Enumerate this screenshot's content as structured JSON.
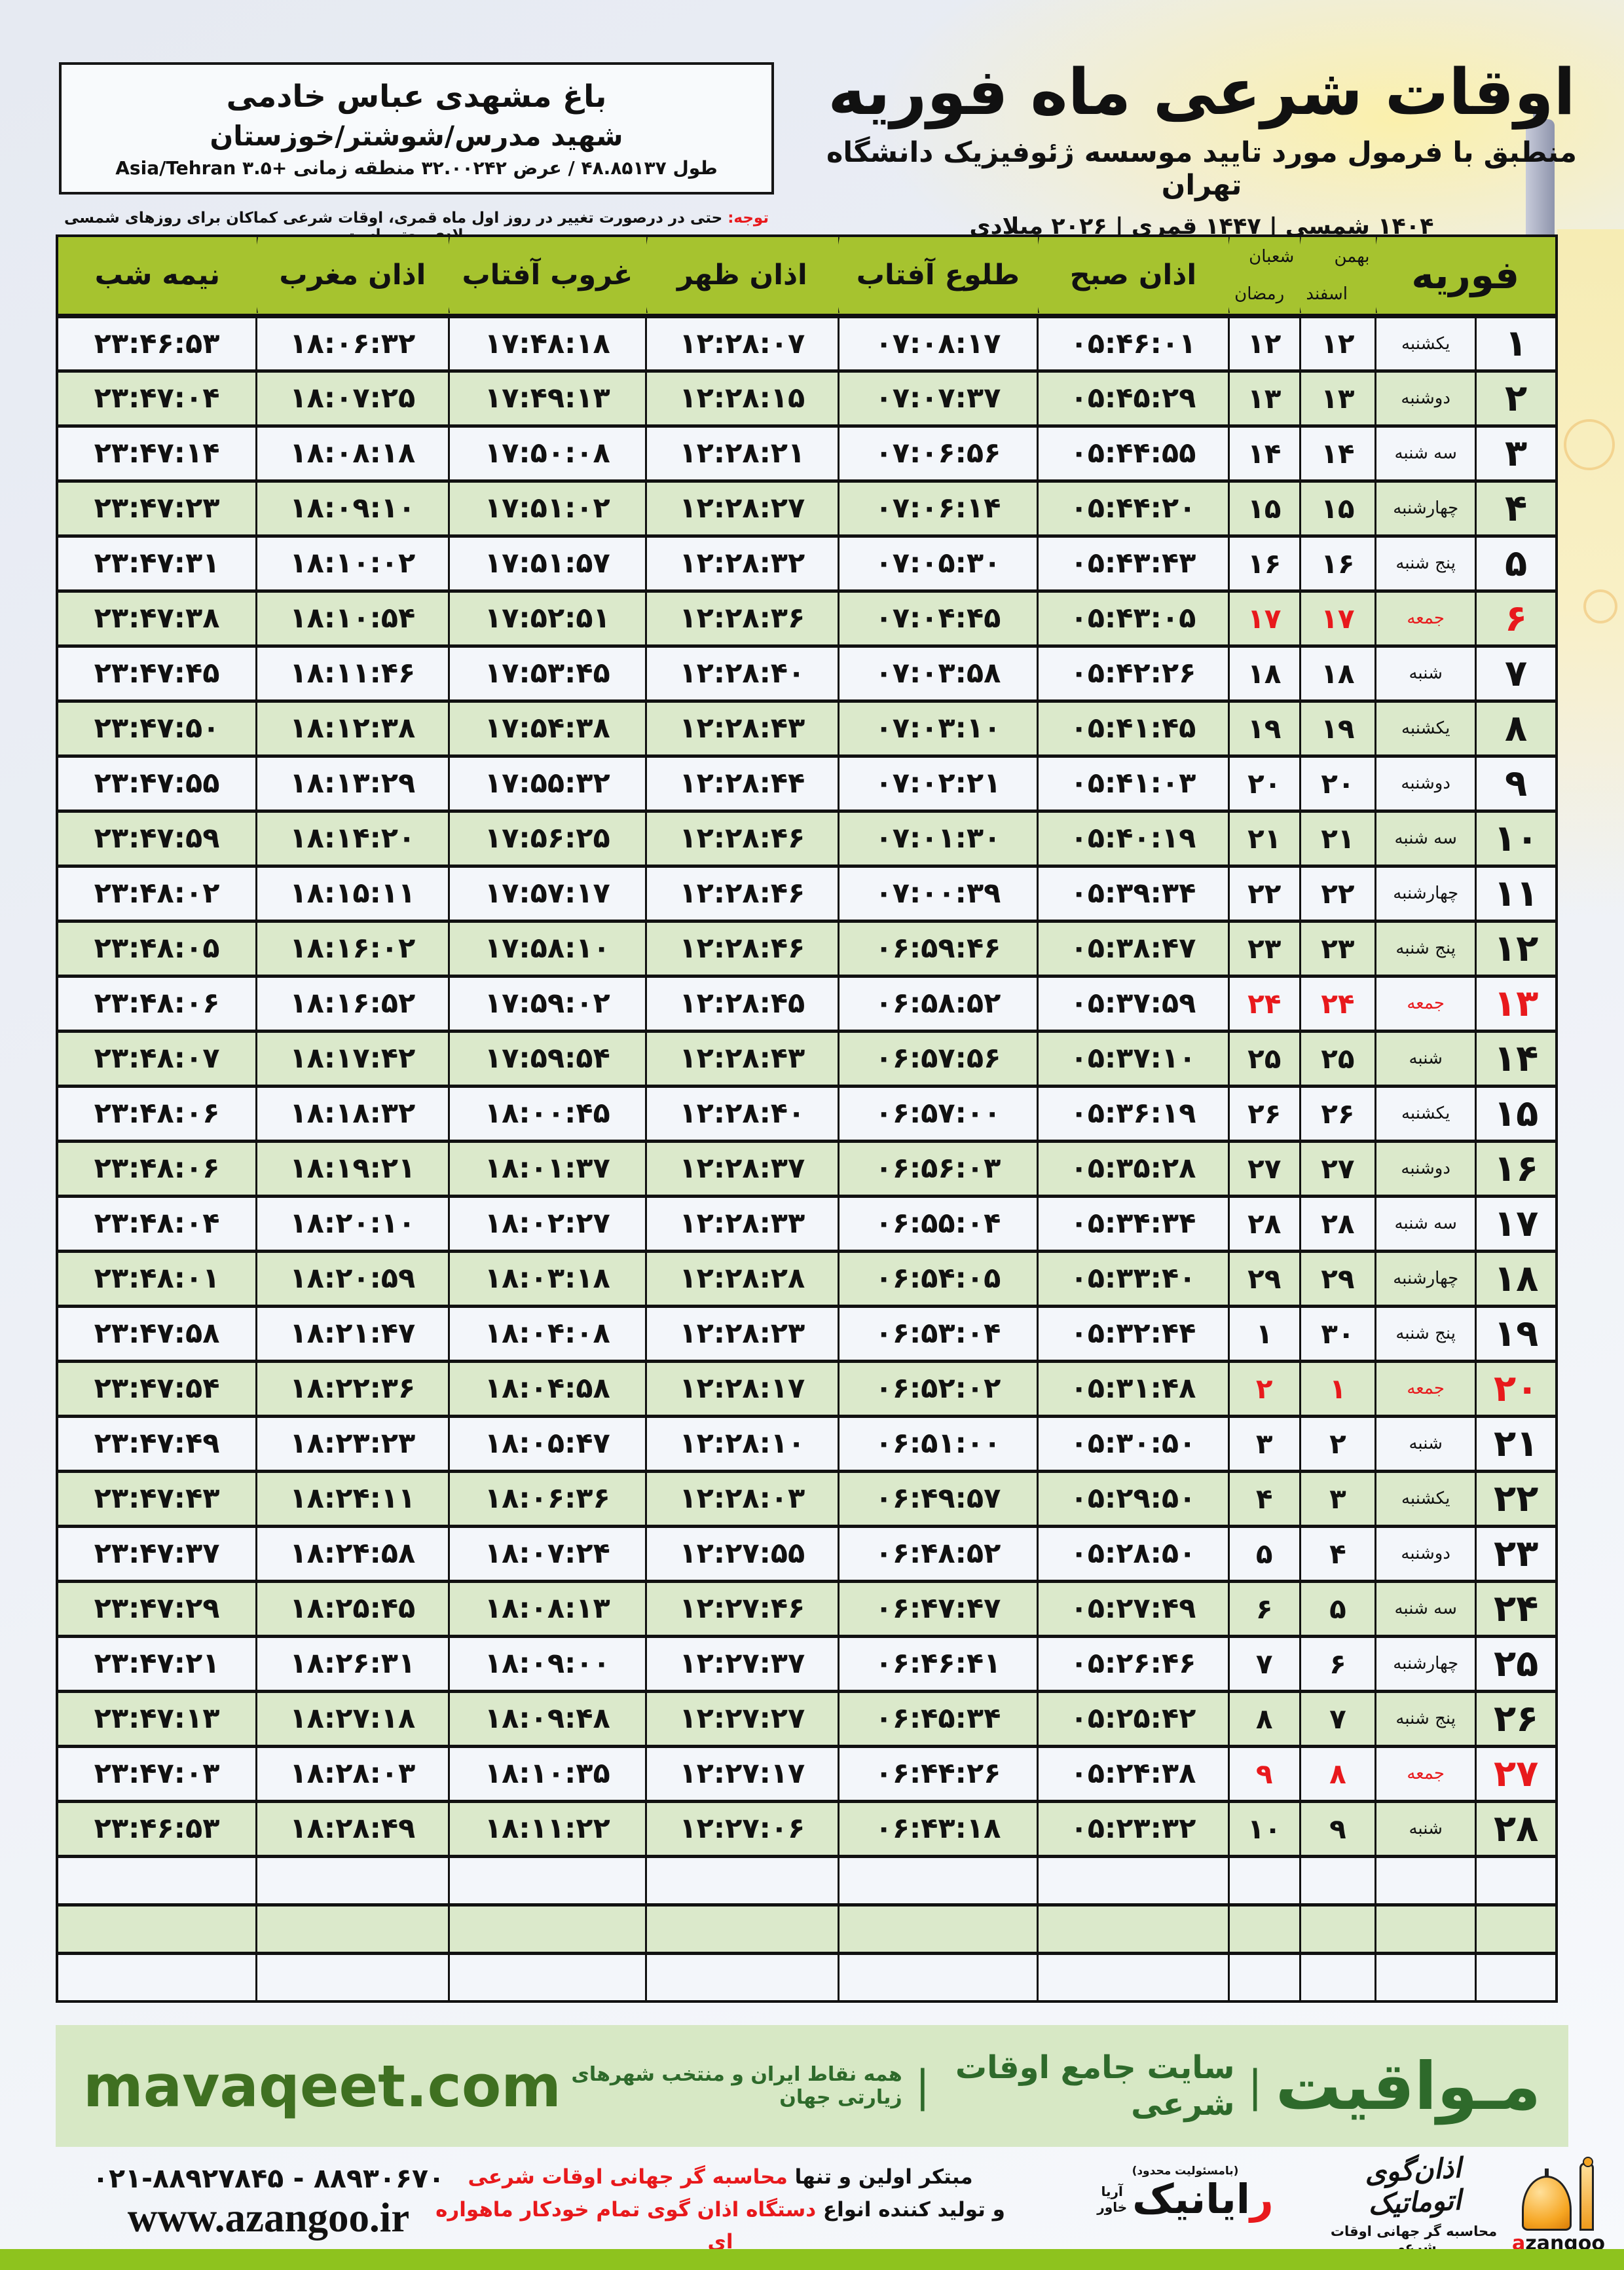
{
  "colors": {
    "header_green": "#a6c32f",
    "row_green": "#dbe9cb",
    "row_white": "#f3f6fa",
    "friday_red": "#e8191c",
    "band_green": "#d7e8c5",
    "brand_green": "#2e6a2b",
    "domain_green": "#3f7021",
    "bottom_strip_green": "#8ec31e"
  },
  "location_box": {
    "name": "باغ مشهدی عباس خادمی",
    "address": "شهید مدرس/شوشتر/خوزستان",
    "coords": "طول ۴۸.۸۵۱۳۷ / عرض ۳۲.۰۰۲۴۲ منطقه زمانی +۳.۵ Asia/Tehran"
  },
  "note": {
    "label": "توجه:",
    "text": " حتی در درصورت تغییر در روز اول ماه قمری، اوقات شرعی کماکان برای روزهای شمسی و میلادی معتبر است."
  },
  "title_block": {
    "title": "اوقات شرعی ماه فوریه",
    "subtitle": "منطبق با فرمول مورد تایید موسسه ژئوفیزیک دانشگاه تهران",
    "era_line": "۱۴۰۴ شمسی | ۱۴۴۷ قمری | ۲۰۲۶ میلادی"
  },
  "table": {
    "cols": {
      "month": "فوریه",
      "jalali_top": "بهمن",
      "jalali_bottom": "اسفند",
      "hijri_top": "شعبان",
      "hijri_bottom": "رمضان",
      "fajr": "اذان صبح",
      "sunrise": "طلوع آفتاب",
      "dhuhr": "اذان ظهر",
      "sunset": "غروب آفتاب",
      "maghrib": "اذان مغرب",
      "midnight": "نیمه شب"
    },
    "empty_rows": 3,
    "rows": [
      {
        "day": "۱",
        "weekday": "یکشنبه",
        "jalali": "۱۲",
        "hijri": "۱۲",
        "fajr": "۰۵:۴۶:۰۱",
        "sunrise": "۰۷:۰۸:۱۷",
        "dhuhr": "۱۲:۲۸:۰۷",
        "sunset": "۱۷:۴۸:۱۸",
        "maghrib": "۱۸:۰۶:۳۲",
        "midnight": "۲۳:۴۶:۵۳",
        "friday": false
      },
      {
        "day": "۲",
        "weekday": "دوشنبه",
        "jalali": "۱۳",
        "hijri": "۱۳",
        "fajr": "۰۵:۴۵:۲۹",
        "sunrise": "۰۷:۰۷:۳۷",
        "dhuhr": "۱۲:۲۸:۱۵",
        "sunset": "۱۷:۴۹:۱۳",
        "maghrib": "۱۸:۰۷:۲۵",
        "midnight": "۲۳:۴۷:۰۴",
        "friday": false
      },
      {
        "day": "۳",
        "weekday": "سه شنبه",
        "jalali": "۱۴",
        "hijri": "۱۴",
        "fajr": "۰۵:۴۴:۵۵",
        "sunrise": "۰۷:۰۶:۵۶",
        "dhuhr": "۱۲:۲۸:۲۱",
        "sunset": "۱۷:۵۰:۰۸",
        "maghrib": "۱۸:۰۸:۱۸",
        "midnight": "۲۳:۴۷:۱۴",
        "friday": false
      },
      {
        "day": "۴",
        "weekday": "چهارشنبه",
        "jalali": "۱۵",
        "hijri": "۱۵",
        "fajr": "۰۵:۴۴:۲۰",
        "sunrise": "۰۷:۰۶:۱۴",
        "dhuhr": "۱۲:۲۸:۲۷",
        "sunset": "۱۷:۵۱:۰۲",
        "maghrib": "۱۸:۰۹:۱۰",
        "midnight": "۲۳:۴۷:۲۳",
        "friday": false
      },
      {
        "day": "۵",
        "weekday": "پنج شنبه",
        "jalali": "۱۶",
        "hijri": "۱۶",
        "fajr": "۰۵:۴۳:۴۳",
        "sunrise": "۰۷:۰۵:۳۰",
        "dhuhr": "۱۲:۲۸:۳۲",
        "sunset": "۱۷:۵۱:۵۷",
        "maghrib": "۱۸:۱۰:۰۲",
        "midnight": "۲۳:۴۷:۳۱",
        "friday": false
      },
      {
        "day": "۶",
        "weekday": "جمعه",
        "jalali": "۱۷",
        "hijri": "۱۷",
        "fajr": "۰۵:۴۳:۰۵",
        "sunrise": "۰۷:۰۴:۴۵",
        "dhuhr": "۱۲:۲۸:۳۶",
        "sunset": "۱۷:۵۲:۵۱",
        "maghrib": "۱۸:۱۰:۵۴",
        "midnight": "۲۳:۴۷:۳۸",
        "friday": true
      },
      {
        "day": "۷",
        "weekday": "شنبه",
        "jalali": "۱۸",
        "hijri": "۱۸",
        "fajr": "۰۵:۴۲:۲۶",
        "sunrise": "۰۷:۰۳:۵۸",
        "dhuhr": "۱۲:۲۸:۴۰",
        "sunset": "۱۷:۵۳:۴۵",
        "maghrib": "۱۸:۱۱:۴۶",
        "midnight": "۲۳:۴۷:۴۵",
        "friday": false
      },
      {
        "day": "۸",
        "weekday": "یکشنبه",
        "jalali": "۱۹",
        "hijri": "۱۹",
        "fajr": "۰۵:۴۱:۴۵",
        "sunrise": "۰۷:۰۳:۱۰",
        "dhuhr": "۱۲:۲۸:۴۳",
        "sunset": "۱۷:۵۴:۳۸",
        "maghrib": "۱۸:۱۲:۳۸",
        "midnight": "۲۳:۴۷:۵۰",
        "friday": false
      },
      {
        "day": "۹",
        "weekday": "دوشنبه",
        "jalali": "۲۰",
        "hijri": "۲۰",
        "fajr": "۰۵:۴۱:۰۳",
        "sunrise": "۰۷:۰۲:۲۱",
        "dhuhr": "۱۲:۲۸:۴۴",
        "sunset": "۱۷:۵۵:۳۲",
        "maghrib": "۱۸:۱۳:۲۹",
        "midnight": "۲۳:۴۷:۵۵",
        "friday": false
      },
      {
        "day": "۱۰",
        "weekday": "سه شنبه",
        "jalali": "۲۱",
        "hijri": "۲۱",
        "fajr": "۰۵:۴۰:۱۹",
        "sunrise": "۰۷:۰۱:۳۰",
        "dhuhr": "۱۲:۲۸:۴۶",
        "sunset": "۱۷:۵۶:۲۵",
        "maghrib": "۱۸:۱۴:۲۰",
        "midnight": "۲۳:۴۷:۵۹",
        "friday": false
      },
      {
        "day": "۱۱",
        "weekday": "چهارشنبه",
        "jalali": "۲۲",
        "hijri": "۲۲",
        "fajr": "۰۵:۳۹:۳۴",
        "sunrise": "۰۷:۰۰:۳۹",
        "dhuhr": "۱۲:۲۸:۴۶",
        "sunset": "۱۷:۵۷:۱۷",
        "maghrib": "۱۸:۱۵:۱۱",
        "midnight": "۲۳:۴۸:۰۲",
        "friday": false
      },
      {
        "day": "۱۲",
        "weekday": "پنج شنبه",
        "jalali": "۲۳",
        "hijri": "۲۳",
        "fajr": "۰۵:۳۸:۴۷",
        "sunrise": "۰۶:۵۹:۴۶",
        "dhuhr": "۱۲:۲۸:۴۶",
        "sunset": "۱۷:۵۸:۱۰",
        "maghrib": "۱۸:۱۶:۰۲",
        "midnight": "۲۳:۴۸:۰۵",
        "friday": false
      },
      {
        "day": "۱۳",
        "weekday": "جمعه",
        "jalali": "۲۴",
        "hijri": "۲۴",
        "fajr": "۰۵:۳۷:۵۹",
        "sunrise": "۰۶:۵۸:۵۲",
        "dhuhr": "۱۲:۲۸:۴۵",
        "sunset": "۱۷:۵۹:۰۲",
        "maghrib": "۱۸:۱۶:۵۲",
        "midnight": "۲۳:۴۸:۰۶",
        "friday": true
      },
      {
        "day": "۱۴",
        "weekday": "شنبه",
        "jalali": "۲۵",
        "hijri": "۲۵",
        "fajr": "۰۵:۳۷:۱۰",
        "sunrise": "۰۶:۵۷:۵۶",
        "dhuhr": "۱۲:۲۸:۴۳",
        "sunset": "۱۷:۵۹:۵۴",
        "maghrib": "۱۸:۱۷:۴۲",
        "midnight": "۲۳:۴۸:۰۷",
        "friday": false
      },
      {
        "day": "۱۵",
        "weekday": "یکشنبه",
        "jalali": "۲۶",
        "hijri": "۲۶",
        "fajr": "۰۵:۳۶:۱۹",
        "sunrise": "۰۶:۵۷:۰۰",
        "dhuhr": "۱۲:۲۸:۴۰",
        "sunset": "۱۸:۰۰:۴۵",
        "maghrib": "۱۸:۱۸:۳۲",
        "midnight": "۲۳:۴۸:۰۶",
        "friday": false
      },
      {
        "day": "۱۶",
        "weekday": "دوشنبه",
        "jalali": "۲۷",
        "hijri": "۲۷",
        "fajr": "۰۵:۳۵:۲۸",
        "sunrise": "۰۶:۵۶:۰۳",
        "dhuhr": "۱۲:۲۸:۳۷",
        "sunset": "۱۸:۰۱:۳۷",
        "maghrib": "۱۸:۱۹:۲۱",
        "midnight": "۲۳:۴۸:۰۶",
        "friday": false
      },
      {
        "day": "۱۷",
        "weekday": "سه شنبه",
        "jalali": "۲۸",
        "hijri": "۲۸",
        "fajr": "۰۵:۳۴:۳۴",
        "sunrise": "۰۶:۵۵:۰۴",
        "dhuhr": "۱۲:۲۸:۳۳",
        "sunset": "۱۸:۰۲:۲۷",
        "maghrib": "۱۸:۲۰:۱۰",
        "midnight": "۲۳:۴۸:۰۴",
        "friday": false
      },
      {
        "day": "۱۸",
        "weekday": "چهارشنبه",
        "jalali": "۲۹",
        "hijri": "۲۹",
        "fajr": "۰۵:۳۳:۴۰",
        "sunrise": "۰۶:۵۴:۰۵",
        "dhuhr": "۱۲:۲۸:۲۸",
        "sunset": "۱۸:۰۳:۱۸",
        "maghrib": "۱۸:۲۰:۵۹",
        "midnight": "۲۳:۴۸:۰۱",
        "friday": false
      },
      {
        "day": "۱۹",
        "weekday": "پنج شنبه",
        "jalali": "۳۰",
        "hijri": "۱",
        "fajr": "۰۵:۳۲:۴۴",
        "sunrise": "۰۶:۵۳:۰۴",
        "dhuhr": "۱۲:۲۸:۲۳",
        "sunset": "۱۸:۰۴:۰۸",
        "maghrib": "۱۸:۲۱:۴۷",
        "midnight": "۲۳:۴۷:۵۸",
        "friday": false
      },
      {
        "day": "۲۰",
        "weekday": "جمعه",
        "jalali": "۱",
        "hijri": "۲",
        "fajr": "۰۵:۳۱:۴۸",
        "sunrise": "۰۶:۵۲:۰۲",
        "dhuhr": "۱۲:۲۸:۱۷",
        "sunset": "۱۸:۰۴:۵۸",
        "maghrib": "۱۸:۲۲:۳۶",
        "midnight": "۲۳:۴۷:۵۴",
        "friday": true
      },
      {
        "day": "۲۱",
        "weekday": "شنبه",
        "jalali": "۲",
        "hijri": "۳",
        "fajr": "۰۵:۳۰:۵۰",
        "sunrise": "۰۶:۵۱:۰۰",
        "dhuhr": "۱۲:۲۸:۱۰",
        "sunset": "۱۸:۰۵:۴۷",
        "maghrib": "۱۸:۲۳:۲۳",
        "midnight": "۲۳:۴۷:۴۹",
        "friday": false
      },
      {
        "day": "۲۲",
        "weekday": "یکشنبه",
        "jalali": "۳",
        "hijri": "۴",
        "fajr": "۰۵:۲۹:۵۰",
        "sunrise": "۰۶:۴۹:۵۷",
        "dhuhr": "۱۲:۲۸:۰۳",
        "sunset": "۱۸:۰۶:۳۶",
        "maghrib": "۱۸:۲۴:۱۱",
        "midnight": "۲۳:۴۷:۴۳",
        "friday": false
      },
      {
        "day": "۲۳",
        "weekday": "دوشنبه",
        "jalali": "۴",
        "hijri": "۵",
        "fajr": "۰۵:۲۸:۵۰",
        "sunrise": "۰۶:۴۸:۵۲",
        "dhuhr": "۱۲:۲۷:۵۵",
        "sunset": "۱۸:۰۷:۲۴",
        "maghrib": "۱۸:۲۴:۵۸",
        "midnight": "۲۳:۴۷:۳۷",
        "friday": false
      },
      {
        "day": "۲۴",
        "weekday": "سه شنبه",
        "jalali": "۵",
        "hijri": "۶",
        "fajr": "۰۵:۲۷:۴۹",
        "sunrise": "۰۶:۴۷:۴۷",
        "dhuhr": "۱۲:۲۷:۴۶",
        "sunset": "۱۸:۰۸:۱۳",
        "maghrib": "۱۸:۲۵:۴۵",
        "midnight": "۲۳:۴۷:۲۹",
        "friday": false
      },
      {
        "day": "۲۵",
        "weekday": "چهارشنبه",
        "jalali": "۶",
        "hijri": "۷",
        "fajr": "۰۵:۲۶:۴۶",
        "sunrise": "۰۶:۴۶:۴۱",
        "dhuhr": "۱۲:۲۷:۳۷",
        "sunset": "۱۸:۰۹:۰۰",
        "maghrib": "۱۸:۲۶:۳۱",
        "midnight": "۲۳:۴۷:۲۱",
        "friday": false
      },
      {
        "day": "۲۶",
        "weekday": "پنج شنبه",
        "jalali": "۷",
        "hijri": "۸",
        "fajr": "۰۵:۲۵:۴۲",
        "sunrise": "۰۶:۴۵:۳۴",
        "dhuhr": "۱۲:۲۷:۲۷",
        "sunset": "۱۸:۰۹:۴۸",
        "maghrib": "۱۸:۲۷:۱۸",
        "midnight": "۲۳:۴۷:۱۳",
        "friday": false
      },
      {
        "day": "۲۷",
        "weekday": "جمعه",
        "jalali": "۸",
        "hijri": "۹",
        "fajr": "۰۵:۲۴:۳۸",
        "sunrise": "۰۶:۴۴:۲۶",
        "dhuhr": "۱۲:۲۷:۱۷",
        "sunset": "۱۸:۱۰:۳۵",
        "maghrib": "۱۸:۲۸:۰۳",
        "midnight": "۲۳:۴۷:۰۳",
        "friday": true
      },
      {
        "day": "۲۸",
        "weekday": "شنبه",
        "jalali": "۹",
        "hijri": "۱۰",
        "fajr": "۰۵:۲۳:۳۲",
        "sunrise": "۰۶:۴۳:۱۸",
        "dhuhr": "۱۲:۲۷:۰۶",
        "sunset": "۱۸:۱۱:۲۲",
        "maghrib": "۱۸:۲۸:۴۹",
        "midnight": "۲۳:۴۶:۵۳",
        "friday": false
      }
    ]
  },
  "footer_band": {
    "brand": "مـواقیت",
    "separator": "|",
    "site_desc": "سایت جامع اوقات شرعی",
    "coverage": "همه نقاط ایران و منتخب شهرهای زیارتی جهان",
    "domain": "mavaqeet.com"
  },
  "bottom_bar": {
    "phone": "۰۲۱-۸۸۹۲۷۸۴۵ - ۸۸۹۳۰۶۷۰",
    "website": "www.azangoo.ir",
    "line1_black": "مبتکر اولین و تنها ",
    "line1_red": "محاسبه گر جهانی اوقات شرعی",
    "line2_black": "و تولید کننده انواع ",
    "line2_red": "دستگاه اذان گوی تمام خودکار ماهواره ای",
    "rayanik_note": "(بامسئولیت محدود)",
    "rayanik_first": "ر",
    "rayanik_rest": "ایانیک",
    "rayanik_sub_top": "آریا",
    "rayanik_sub_bottom": "خاور",
    "azangoo_title": "اذان‌گوی اتوماتیک",
    "azangoo_sub": "محاسبه گر جهانی اوقات شرعی",
    "azangoo_latin_a": "a",
    "azangoo_latin_rest": "zangoo"
  }
}
